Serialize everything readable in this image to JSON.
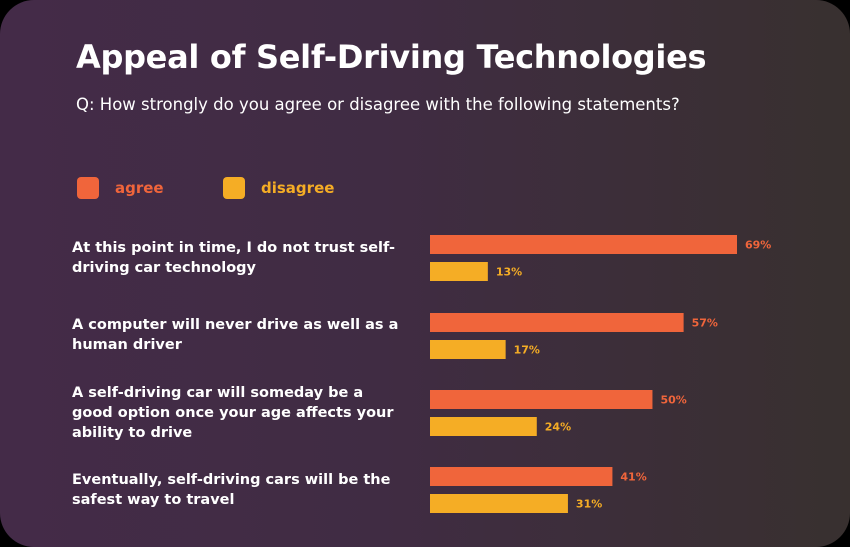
{
  "chart_data": {
    "type": "bar",
    "orientation": "horizontal",
    "title": "Appeal of Self-Driving Technologies",
    "subtitle": "Q: How strongly do you agree or disagree with the following statements?",
    "categories": [
      "At this point in time, I do not trust self-driving car technology",
      "A computer will never drive as well as a human driver",
      "A self-driving car will someday be a good option once your age affects your ability to drive",
      "Eventually, self-driving cars will be the safest way to travel"
    ],
    "series": [
      {
        "name": "agree",
        "color": "#f0653b",
        "values": [
          69,
          57,
          50,
          41
        ],
        "labels": [
          "69%",
          "57%",
          "50%",
          "41%"
        ]
      },
      {
        "name": "disagree",
        "color": "#f5ad25",
        "values": [
          13,
          17,
          24,
          31
        ],
        "labels": [
          "13%",
          "17%",
          "24%",
          "31%"
        ]
      }
    ],
    "unit": "%",
    "grid": false,
    "legend_position": "top-left"
  }
}
